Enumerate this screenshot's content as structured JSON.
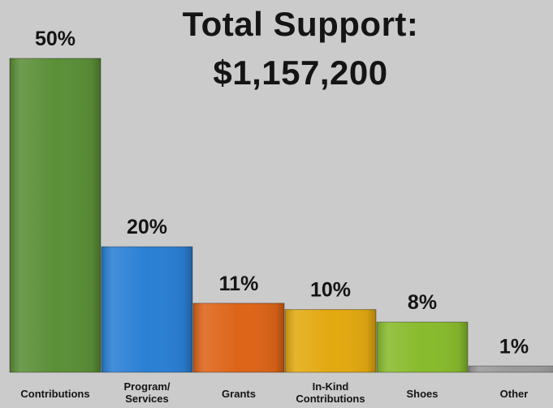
{
  "title_lines": [
    "Total Support:",
    "$1,157,200"
  ],
  "chart_data": {
    "type": "bar",
    "title": "Total Support: $1,157,200",
    "xlabel": "",
    "ylabel": "",
    "ylim": [
      0,
      50
    ],
    "grid": false,
    "categories": [
      "Contributions",
      "Program/ Services",
      "Grants",
      "In-Kind Contributions",
      "Shoes",
      "Other"
    ],
    "values": [
      50,
      20,
      11,
      10,
      8,
      1
    ],
    "data_labels": [
      "50%",
      "20%",
      "11%",
      "10%",
      "8%",
      "1%"
    ],
    "colors": [
      "#5b8f37",
      "#2a7fd4",
      "#dd6418",
      "#e3a910",
      "#88bb2c",
      "#9a9a9a"
    ]
  }
}
